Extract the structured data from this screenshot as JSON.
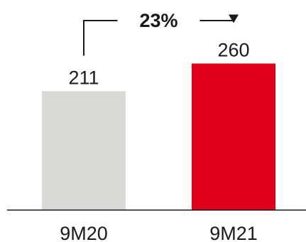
{
  "chart_data": {
    "type": "bar",
    "categories": [
      "9M20",
      "9M21"
    ],
    "values": [
      211,
      260
    ],
    "value_labels": [
      "211",
      "260"
    ],
    "colors": [
      "#d9d9d7",
      "#e0001b"
    ],
    "ylim": [
      0,
      340
    ],
    "annotation": {
      "text": "23%",
      "from": "9M20",
      "to": "9M21"
    },
    "title": "",
    "xlabel": "",
    "ylabel": "",
    "grid": false,
    "legend": "none"
  }
}
